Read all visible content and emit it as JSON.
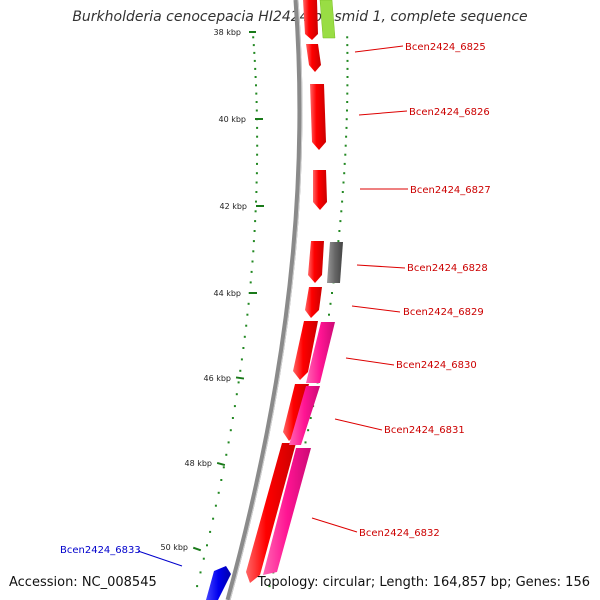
{
  "title": "Burkholderia cenocepacia HI2424 plasmid 1, complete sequence",
  "footer": {
    "accession": "Accession: NC_008545",
    "topology": "Topology: circular; Length: 164,857 bp; Genes: 156"
  },
  "colors": {
    "forward_gene": "#ff0000",
    "pink_gene": "#ff1493",
    "gray_gene": "#666666",
    "green_gene": "#99dd44",
    "blue_gene": "#0000ee",
    "ruler_dots": "#228822",
    "label_red": "#cc0000",
    "label_blue": "#0000cc",
    "backbone": "#888888"
  },
  "kbp_ticks": [
    "38 kbp",
    "40 kbp",
    "42 kbp",
    "44 kbp",
    "46 kbp",
    "48 kbp",
    "50 kbp"
  ],
  "gene_labels": [
    {
      "text": "Bcen2424_6825",
      "color": "red"
    },
    {
      "text": "Bcen2424_6826",
      "color": "red"
    },
    {
      "text": "Bcen2424_6827",
      "color": "red"
    },
    {
      "text": "Bcen2424_6828",
      "color": "red"
    },
    {
      "text": "Bcen2424_6829",
      "color": "red"
    },
    {
      "text": "Bcen2424_6830",
      "color": "red"
    },
    {
      "text": "Bcen2424_6831",
      "color": "red"
    },
    {
      "text": "Bcen2424_6832",
      "color": "red"
    },
    {
      "text": "Bcen2424_6833",
      "color": "blue"
    }
  ]
}
